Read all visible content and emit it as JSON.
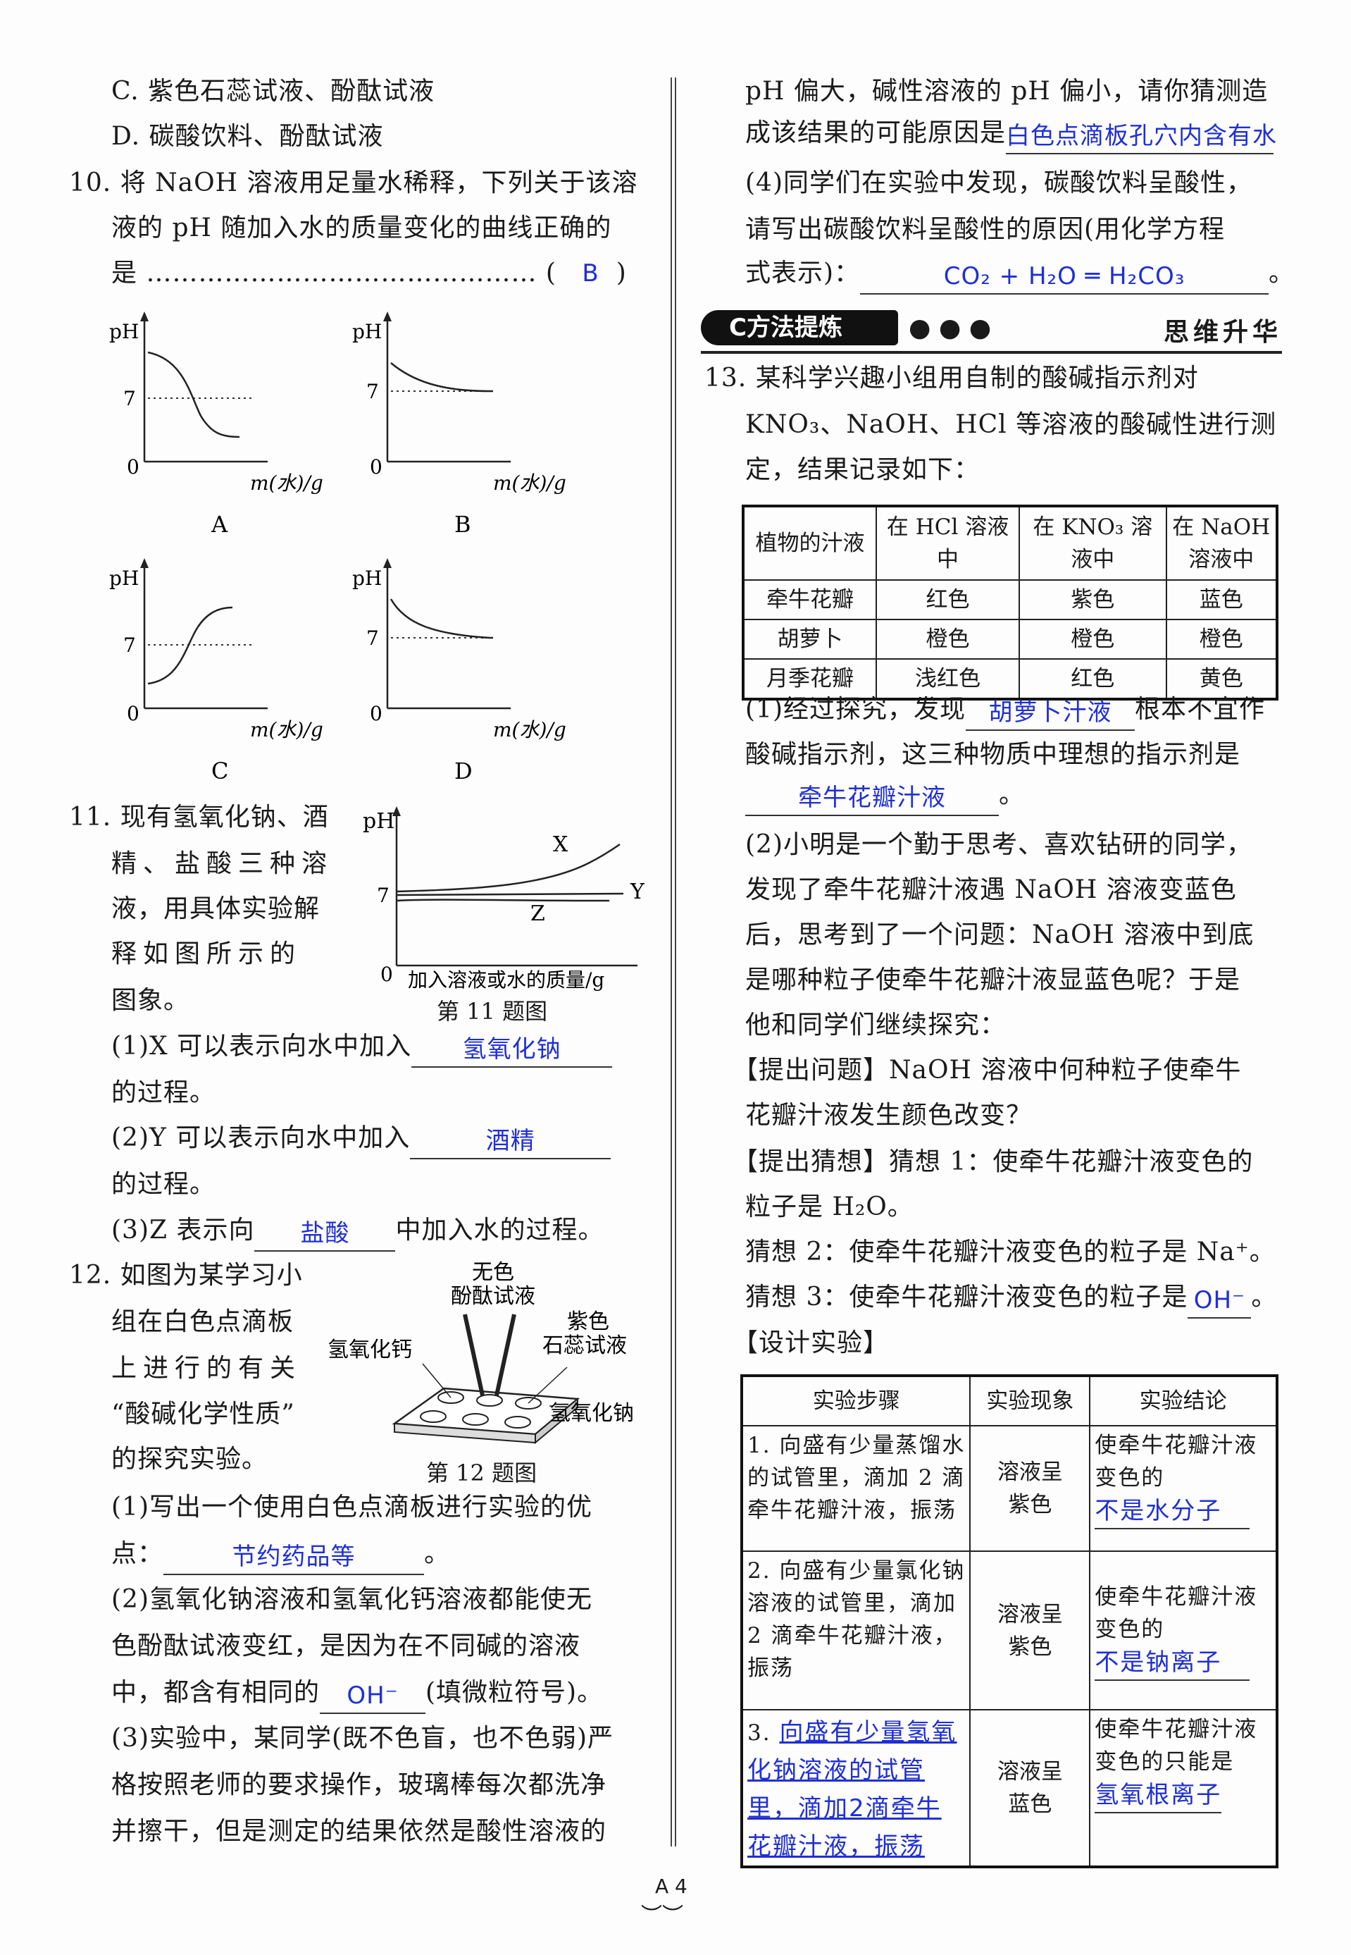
{
  "left": {
    "q9_c": "C. 紫色石蕊试液、酚酞试液",
    "q9_d": "D. 碳酸饮料、酚酞试液",
    "q10_l1": "10. 将 NaOH 溶液用足量水稀释，下列关于该溶",
    "q10_l2": "液的 pH 随加入水的质量变化的曲线正确的",
    "q10_l3": "是 ……………………………………… (",
    "q10_l3_end": ")",
    "q10_answer": "B",
    "graph_ylabel": "pH",
    "graph_y7": "7",
    "graph_origin": "0",
    "graph_xlabel": "m(水)/g",
    "graph_labels": [
      "A",
      "B",
      "C",
      "D"
    ],
    "q11_lines": [
      "11. 现有氢氧化钠、酒",
      "精、盐酸三种溶",
      "液，用具体实验解",
      "释如图所示的",
      "图象。"
    ],
    "q11_fig": {
      "ylabel": "pH",
      "y7": "7",
      "origin": "0",
      "xlabel": "加入溶液或水的质量/g",
      "curves": [
        "X",
        "Y",
        "Z"
      ],
      "caption": "第 11 题图"
    },
    "q11_1a": "(1)X 可以表示向水中加入",
    "q11_1_ans": "氢氧化钠",
    "q11_1b": "的过程。",
    "q11_2a": "(2)Y 可以表示向水中加入",
    "q11_2_ans": "酒精",
    "q11_2b": "的过程。",
    "q11_3a": "(3)Z 表示向",
    "q11_3_ans": "盐酸",
    "q11_3b": "中加入水的过程。",
    "q12_lines": [
      "12. 如图为某学习小",
      "组在白色点滴板",
      "上进行的有关",
      "“酸碱化学性质”",
      "的探究实验。"
    ],
    "q12_fig": {
      "l1": "无色",
      "l2": "酚酞试液",
      "l3": "紫色",
      "l4": "石蕊试液",
      "l5": "氢氧化钙",
      "l6": "氢氧化钠",
      "caption": "第 12 题图"
    },
    "q12_1a": "(1)写出一个使用白色点滴板进行实验的优",
    "q12_1b": "点：",
    "q12_1_ans": "节约药品等",
    "q12_1c": "。",
    "q12_2a": "(2)氢氧化钠溶液和氢氧化钙溶液都能使无",
    "q12_2b": "色酚酞试液变红，是因为在不同碱的溶液",
    "q12_2c": "中，都含有相同的",
    "q12_2_ans": "OH⁻",
    "q12_2d": "(填微粒符号)。",
    "q12_3a": "(3)实验中，某同学(既不色盲，也不色弱)严",
    "q12_3b": "格按照老师的要求操作，玻璃棒每次都洗净",
    "q12_3c": "并擦干，但是测定的结果依然是酸性溶液的"
  },
  "right": {
    "l1": "pH 偏大，碱性溶液的 pH 偏小，请你猜测造",
    "l2": "成该结果的可能原因是",
    "l2_ans": "白色点滴板孔穴内含有水",
    "l3": "(4)同学们在实验中发现，碳酸饮料呈酸性，",
    "l4": "请写出碳酸饮料呈酸性的原因(用化学方程",
    "l5": "式表示)：",
    "l5_ans": "CO₂ + H₂O ═ H₂CO₃",
    "l5_end": "。",
    "banner": {
      "tag": "C方法提炼",
      "dots": "● ● ●",
      "right": "思维升华"
    },
    "q13_l1": "13. 某科学兴趣小组用自制的酸碱指示剂对",
    "q13_l2": "KNO₃、NaOH、HCl 等溶液的酸碱性进行测",
    "q13_l3": "定，结果记录如下：",
    "table1": {
      "headers": [
        "植物的汁液",
        "在 HCl 溶液中",
        "在 KNO₃ 溶液中",
        "在 NaOH 溶液中"
      ],
      "rows": [
        [
          "牵牛花瓣",
          "红色",
          "紫色",
          "蓝色"
        ],
        [
          "胡萝卜",
          "橙色",
          "橙色",
          "橙色"
        ],
        [
          "月季花瓣",
          "浅红色",
          "红色",
          "黄色"
        ]
      ]
    },
    "p1a": "(1)经过探究，发现",
    "p1_ans1": "胡萝卜汁液",
    "p1b": "根本不宜作",
    "p1c": "酸碱指示剂，这三种物质中理想的指示剂是",
    "p1_ans2": "牵牛花瓣汁液",
    "p1d": "。",
    "p2": [
      "(2)小明是一个勤于思考、喜欢钻研的同学，",
      "发现了牵牛花瓣汁液遇 NaOH 溶液变蓝色",
      "后，思考到了一个问题：NaOH 溶液中到底",
      "是哪种粒子使牵牛花瓣汁液显蓝色呢？于是",
      "他和同学们继续探究：",
      "【提出问题】NaOH 溶液中何种粒子使牵牛",
      "花瓣汁液发生颜色改变？",
      "【提出猜想】猜想 1：使牵牛花瓣汁液变色的",
      "粒子是 H₂O。",
      "猜想 2：使牵牛花瓣汁液变色的粒子是 Na⁺。"
    ],
    "g3": "猜想 3：使牵牛花瓣汁液变色的粒子是",
    "g3_ans": "OH⁻",
    "g3_end": "。",
    "design": "【设计实验】",
    "table2": {
      "headers": [
        "实验步骤",
        "实验现象",
        "实验结论"
      ],
      "rows": [
        {
          "step": "1. 向盛有少量蒸馏水的试管里，滴加 2 滴牵牛花瓣汁液，振荡",
          "phen": "溶液呈紫色",
          "concl": "使牵牛花瓣汁液变色的",
          "ans": "不是水分子"
        },
        {
          "step": "2. 向盛有少量氯化钠溶液的试管里，滴加 2 滴牵牛花瓣汁液，振荡",
          "phen": "溶液呈紫色",
          "concl": "使牵牛花瓣汁液变色的",
          "ans": "不是钠离子"
        },
        {
          "step": "3.",
          "step_ans": "向盛有少量氢氧化钠溶液的试管里，滴加2滴牵牛花瓣汁液，振荡",
          "phen": "溶液呈蓝色",
          "concl": "使牵牛花瓣汁液变色的只能是",
          "ans": "氢氧根离子"
        }
      ]
    }
  },
  "page_number": "A 4",
  "colors": {
    "answer": "#1f2fd6",
    "text": "#1a1a1a"
  }
}
